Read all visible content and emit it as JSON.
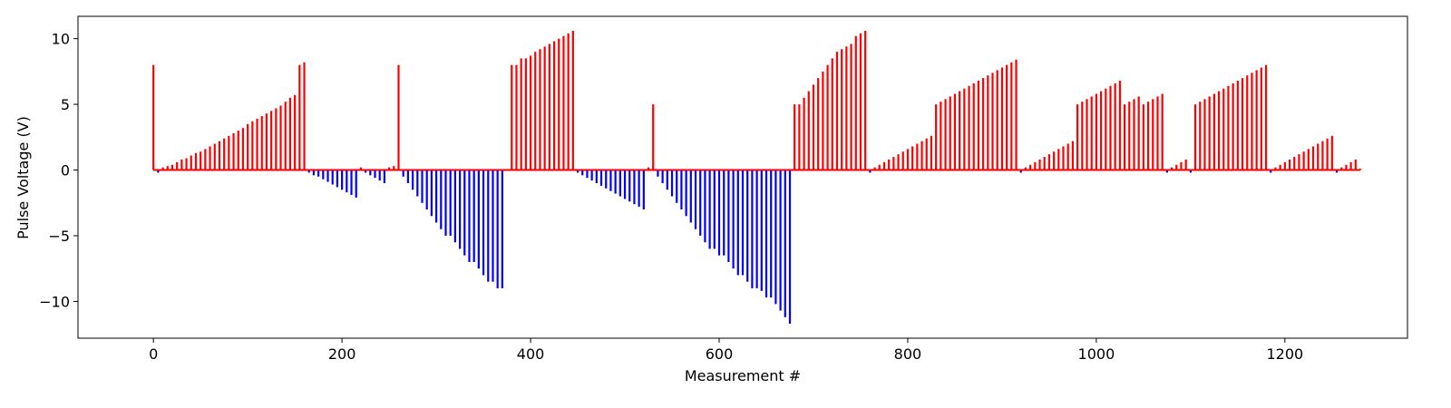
{
  "chart_data": {
    "type": "bar",
    "title": "",
    "xlabel": "Measurement #",
    "ylabel": "Pulse Voltage (V)",
    "xlim": [
      -80,
      1330
    ],
    "ylim": [
      -12.8,
      11.7
    ],
    "xticks": [
      0,
      200,
      400,
      600,
      800,
      1000,
      1200
    ],
    "yticks": [
      -10,
      -5,
      0,
      5,
      10
    ],
    "positive_color": "#ff0000",
    "negative_color": "#0000ff",
    "grid": false,
    "legend": "none",
    "pulses": [
      [
        0,
        8.0
      ],
      [
        5,
        -0.2
      ],
      [
        10,
        0.2
      ],
      [
        15,
        0.3
      ],
      [
        20,
        0.4
      ],
      [
        25,
        0.6
      ],
      [
        30,
        0.8
      ],
      [
        35,
        0.9
      ],
      [
        40,
        1.1
      ],
      [
        45,
        1.3
      ],
      [
        50,
        1.4
      ],
      [
        55,
        1.6
      ],
      [
        60,
        1.8
      ],
      [
        65,
        2.0
      ],
      [
        70,
        2.2
      ],
      [
        75,
        2.4
      ],
      [
        80,
        2.6
      ],
      [
        85,
        2.8
      ],
      [
        90,
        3.0
      ],
      [
        95,
        3.2
      ],
      [
        100,
        3.5
      ],
      [
        105,
        3.7
      ],
      [
        110,
        3.9
      ],
      [
        115,
        4.1
      ],
      [
        120,
        4.3
      ],
      [
        125,
        4.5
      ],
      [
        130,
        4.7
      ],
      [
        135,
        4.9
      ],
      [
        140,
        5.2
      ],
      [
        145,
        5.5
      ],
      [
        150,
        5.7
      ],
      [
        155,
        8.0
      ],
      [
        160,
        8.2
      ],
      [
        165,
        -0.2
      ],
      [
        170,
        -0.4
      ],
      [
        175,
        -0.5
      ],
      [
        180,
        -0.7
      ],
      [
        185,
        -0.9
      ],
      [
        190,
        -1.1
      ],
      [
        195,
        -1.3
      ],
      [
        200,
        -1.5
      ],
      [
        205,
        -1.7
      ],
      [
        210,
        -1.9
      ],
      [
        215,
        -2.1
      ],
      [
        220,
        0.2
      ],
      [
        225,
        -0.2
      ],
      [
        230,
        -0.4
      ],
      [
        235,
        -0.6
      ],
      [
        240,
        -0.8
      ],
      [
        245,
        -1.0
      ],
      [
        250,
        0.2
      ],
      [
        255,
        0.3
      ],
      [
        260,
        8.0
      ],
      [
        265,
        -0.5
      ],
      [
        270,
        -1.0
      ],
      [
        275,
        -1.5
      ],
      [
        280,
        -2.0
      ],
      [
        285,
        -2.5
      ],
      [
        290,
        -3.0
      ],
      [
        295,
        -3.5
      ],
      [
        300,
        -4.0
      ],
      [
        305,
        -4.5
      ],
      [
        310,
        -5.0
      ],
      [
        315,
        -5.0
      ],
      [
        320,
        -5.5
      ],
      [
        325,
        -6.0
      ],
      [
        330,
        -6.5
      ],
      [
        335,
        -7.0
      ],
      [
        340,
        -7.0
      ],
      [
        345,
        -7.5
      ],
      [
        350,
        -8.0
      ],
      [
        355,
        -8.5
      ],
      [
        360,
        -8.5
      ],
      [
        365,
        -9.0
      ],
      [
        370,
        -9.0
      ],
      [
        380,
        8.0
      ],
      [
        385,
        8.0
      ],
      [
        390,
        8.5
      ],
      [
        395,
        8.5
      ],
      [
        400,
        8.7
      ],
      [
        405,
        9.0
      ],
      [
        410,
        9.2
      ],
      [
        415,
        9.4
      ],
      [
        420,
        9.6
      ],
      [
        425,
        9.8
      ],
      [
        430,
        10.0
      ],
      [
        435,
        10.2
      ],
      [
        440,
        10.4
      ],
      [
        445,
        10.6
      ],
      [
        450,
        -0.2
      ],
      [
        455,
        -0.4
      ],
      [
        460,
        -0.6
      ],
      [
        465,
        -0.8
      ],
      [
        470,
        -1.0
      ],
      [
        475,
        -1.2
      ],
      [
        480,
        -1.4
      ],
      [
        485,
        -1.6
      ],
      [
        490,
        -1.8
      ],
      [
        495,
        -2.0
      ],
      [
        500,
        -2.2
      ],
      [
        505,
        -2.4
      ],
      [
        510,
        -2.6
      ],
      [
        515,
        -2.8
      ],
      [
        520,
        -3.0
      ],
      [
        525,
        0.2
      ],
      [
        530,
        5.0
      ],
      [
        535,
        -0.5
      ],
      [
        540,
        -1.0
      ],
      [
        545,
        -1.5
      ],
      [
        550,
        -2.0
      ],
      [
        555,
        -2.5
      ],
      [
        560,
        -3.0
      ],
      [
        565,
        -3.5
      ],
      [
        570,
        -4.0
      ],
      [
        575,
        -4.5
      ],
      [
        580,
        -5.0
      ],
      [
        585,
        -5.5
      ],
      [
        590,
        -6.0
      ],
      [
        595,
        -6.0
      ],
      [
        600,
        -6.5
      ],
      [
        605,
        -6.5
      ],
      [
        610,
        -7.0
      ],
      [
        615,
        -7.5
      ],
      [
        620,
        -8.0
      ],
      [
        625,
        -8.0
      ],
      [
        630,
        -8.5
      ],
      [
        635,
        -9.0
      ],
      [
        640,
        -9.0
      ],
      [
        645,
        -9.2
      ],
      [
        650,
        -9.7
      ],
      [
        655,
        -9.7
      ],
      [
        660,
        -10.2
      ],
      [
        665,
        -10.7
      ],
      [
        670,
        -11.2
      ],
      [
        675,
        -11.7
      ],
      [
        680,
        5.0
      ],
      [
        685,
        5.0
      ],
      [
        690,
        5.5
      ],
      [
        695,
        6.0
      ],
      [
        700,
        6.5
      ],
      [
        705,
        7.0
      ],
      [
        710,
        7.5
      ],
      [
        715,
        8.0
      ],
      [
        720,
        8.5
      ],
      [
        725,
        9.0
      ],
      [
        730,
        9.2
      ],
      [
        735,
        9.4
      ],
      [
        740,
        9.6
      ],
      [
        745,
        10.2
      ],
      [
        750,
        10.4
      ],
      [
        755,
        10.6
      ],
      [
        760,
        -0.2
      ],
      [
        765,
        0.2
      ],
      [
        770,
        0.4
      ],
      [
        775,
        0.6
      ],
      [
        780,
        0.8
      ],
      [
        785,
        1.0
      ],
      [
        790,
        1.2
      ],
      [
        795,
        1.4
      ],
      [
        800,
        1.6
      ],
      [
        805,
        1.8
      ],
      [
        810,
        2.0
      ],
      [
        815,
        2.2
      ],
      [
        820,
        2.4
      ],
      [
        825,
        2.6
      ],
      [
        830,
        5.0
      ],
      [
        835,
        5.2
      ],
      [
        840,
        5.4
      ],
      [
        845,
        5.6
      ],
      [
        850,
        5.8
      ],
      [
        855,
        6.0
      ],
      [
        860,
        6.2
      ],
      [
        865,
        6.4
      ],
      [
        870,
        6.6
      ],
      [
        875,
        6.8
      ],
      [
        880,
        7.0
      ],
      [
        885,
        7.2
      ],
      [
        890,
        7.4
      ],
      [
        895,
        7.6
      ],
      [
        900,
        7.8
      ],
      [
        905,
        8.0
      ],
      [
        910,
        8.2
      ],
      [
        915,
        8.4
      ],
      [
        920,
        -0.2
      ],
      [
        925,
        0.2
      ],
      [
        930,
        0.4
      ],
      [
        935,
        0.6
      ],
      [
        940,
        0.8
      ],
      [
        945,
        1.0
      ],
      [
        950,
        1.2
      ],
      [
        955,
        1.4
      ],
      [
        960,
        1.6
      ],
      [
        965,
        1.8
      ],
      [
        970,
        2.0
      ],
      [
        975,
        2.2
      ],
      [
        980,
        5.0
      ],
      [
        985,
        5.2
      ],
      [
        990,
        5.4
      ],
      [
        995,
        5.6
      ],
      [
        1000,
        5.8
      ],
      [
        1005,
        6.0
      ],
      [
        1010,
        6.2
      ],
      [
        1015,
        6.4
      ],
      [
        1020,
        6.6
      ],
      [
        1025,
        6.8
      ],
      [
        1030,
        5.0
      ],
      [
        1035,
        5.2
      ],
      [
        1040,
        5.4
      ],
      [
        1045,
        5.6
      ],
      [
        1050,
        5.0
      ],
      [
        1055,
        5.2
      ],
      [
        1060,
        5.4
      ],
      [
        1065,
        5.6
      ],
      [
        1070,
        5.8
      ],
      [
        1075,
        -0.2
      ],
      [
        1080,
        0.2
      ],
      [
        1085,
        0.4
      ],
      [
        1090,
        0.6
      ],
      [
        1095,
        0.8
      ],
      [
        1100,
        -0.2
      ],
      [
        1105,
        5.0
      ],
      [
        1110,
        5.2
      ],
      [
        1115,
        5.4
      ],
      [
        1120,
        5.6
      ],
      [
        1125,
        5.8
      ],
      [
        1130,
        6.0
      ],
      [
        1135,
        6.2
      ],
      [
        1140,
        6.4
      ],
      [
        1145,
        6.6
      ],
      [
        1150,
        6.8
      ],
      [
        1155,
        7.0
      ],
      [
        1160,
        7.2
      ],
      [
        1165,
        7.4
      ],
      [
        1170,
        7.6
      ],
      [
        1175,
        7.8
      ],
      [
        1180,
        8.0
      ],
      [
        1185,
        -0.2
      ],
      [
        1190,
        0.2
      ],
      [
        1195,
        0.4
      ],
      [
        1200,
        0.6
      ],
      [
        1205,
        0.8
      ],
      [
        1210,
        1.0
      ],
      [
        1215,
        1.2
      ],
      [
        1220,
        1.4
      ],
      [
        1225,
        1.6
      ],
      [
        1230,
        1.8
      ],
      [
        1235,
        2.0
      ],
      [
        1240,
        2.2
      ],
      [
        1245,
        2.4
      ],
      [
        1250,
        2.6
      ],
      [
        1255,
        -0.2
      ],
      [
        1260,
        0.2
      ],
      [
        1265,
        0.4
      ],
      [
        1270,
        0.6
      ],
      [
        1275,
        0.8
      ],
      [
        1280,
        0.1
      ]
    ]
  }
}
